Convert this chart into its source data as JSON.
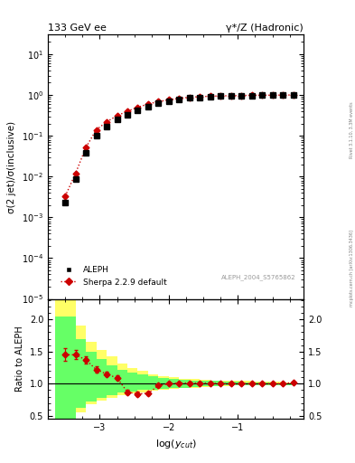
{
  "title_left": "133 GeV ee",
  "title_right": "γ*/Z (Hadronic)",
  "right_label": "mcplots.cern.ch [arXiv:1306.3436]",
  "rivet_label": "Rivet 3.1.10, 3.3M events",
  "watermark": "ALEPH_2004_S5765862",
  "ylabel_main": "σ(2 jet)/σ(inclusive)",
  "ylabel_ratio": "Ratio to ALEPH",
  "xlabel": "log(y_{cut})",
  "x_data": [
    -3.5,
    -3.35,
    -3.2,
    -3.05,
    -2.9,
    -2.75,
    -2.6,
    -2.45,
    -2.3,
    -2.15,
    -2.0,
    -1.85,
    -1.7,
    -1.55,
    -1.4,
    -1.25,
    -1.1,
    -0.95,
    -0.8,
    -0.65,
    -0.5,
    -0.35,
    -0.2
  ],
  "y_data": [
    0.0023,
    0.0085,
    0.038,
    0.1,
    0.17,
    0.25,
    0.33,
    0.42,
    0.52,
    0.62,
    0.7,
    0.78,
    0.84,
    0.88,
    0.91,
    0.93,
    0.95,
    0.96,
    0.97,
    0.98,
    0.985,
    0.995,
    1.0
  ],
  "y_sherpa": [
    0.0033,
    0.012,
    0.052,
    0.14,
    0.22,
    0.31,
    0.4,
    0.5,
    0.6,
    0.69,
    0.76,
    0.83,
    0.88,
    0.91,
    0.93,
    0.95,
    0.96,
    0.97,
    0.98,
    0.985,
    0.99,
    0.995,
    1.0
  ],
  "ratio_sherpa": [
    1.45,
    1.45,
    1.37,
    1.22,
    1.15,
    1.09,
    0.87,
    0.84,
    0.85,
    0.97,
    1.0,
    1.01,
    1.01,
    1.01,
    1.01,
    1.0,
    1.0,
    1.0,
    1.0,
    1.0,
    1.0,
    1.0,
    1.02
  ],
  "x_band_edges": [
    -3.65,
    -3.5,
    -3.35,
    -3.2,
    -3.05,
    -2.9,
    -2.75,
    -2.6,
    -2.45,
    -2.3,
    -2.15,
    -2.0,
    -1.85,
    -1.7,
    -1.55,
    -1.4,
    -1.25,
    -1.1,
    -0.95,
    -0.8,
    -0.65,
    -0.5,
    -0.35,
    -0.2
  ],
  "yellow_band_lo": [
    0.4,
    0.4,
    0.55,
    0.68,
    0.74,
    0.78,
    0.82,
    0.85,
    0.87,
    0.89,
    0.91,
    0.92,
    0.93,
    0.94,
    0.95,
    0.96,
    0.96,
    0.97,
    0.97,
    0.97,
    0.97,
    0.97,
    0.98
  ],
  "yellow_band_hi": [
    2.3,
    2.3,
    1.9,
    1.65,
    1.52,
    1.42,
    1.32,
    1.25,
    1.2,
    1.15,
    1.12,
    1.1,
    1.08,
    1.07,
    1.06,
    1.05,
    1.05,
    1.04,
    1.04,
    1.03,
    1.03,
    1.03,
    1.02
  ],
  "green_band_lo": [
    0.44,
    0.44,
    0.62,
    0.72,
    0.78,
    0.82,
    0.86,
    0.88,
    0.9,
    0.91,
    0.92,
    0.93,
    0.94,
    0.95,
    0.96,
    0.96,
    0.97,
    0.97,
    0.97,
    0.97,
    0.97,
    0.98,
    0.98
  ],
  "green_band_hi": [
    2.05,
    2.05,
    1.7,
    1.5,
    1.38,
    1.28,
    1.22,
    1.18,
    1.14,
    1.11,
    1.09,
    1.07,
    1.06,
    1.05,
    1.04,
    1.04,
    1.03,
    1.03,
    1.02,
    1.02,
    1.02,
    1.01,
    1.01
  ],
  "data_color": "#000000",
  "sherpa_color": "#cc0000",
  "yellow_color": "#ffff66",
  "green_color": "#66ff66",
  "xlim": [
    -3.75,
    -0.05
  ],
  "ylim_main_log": [
    1e-05,
    30
  ],
  "ylim_ratio": [
    0.45,
    2.32
  ]
}
